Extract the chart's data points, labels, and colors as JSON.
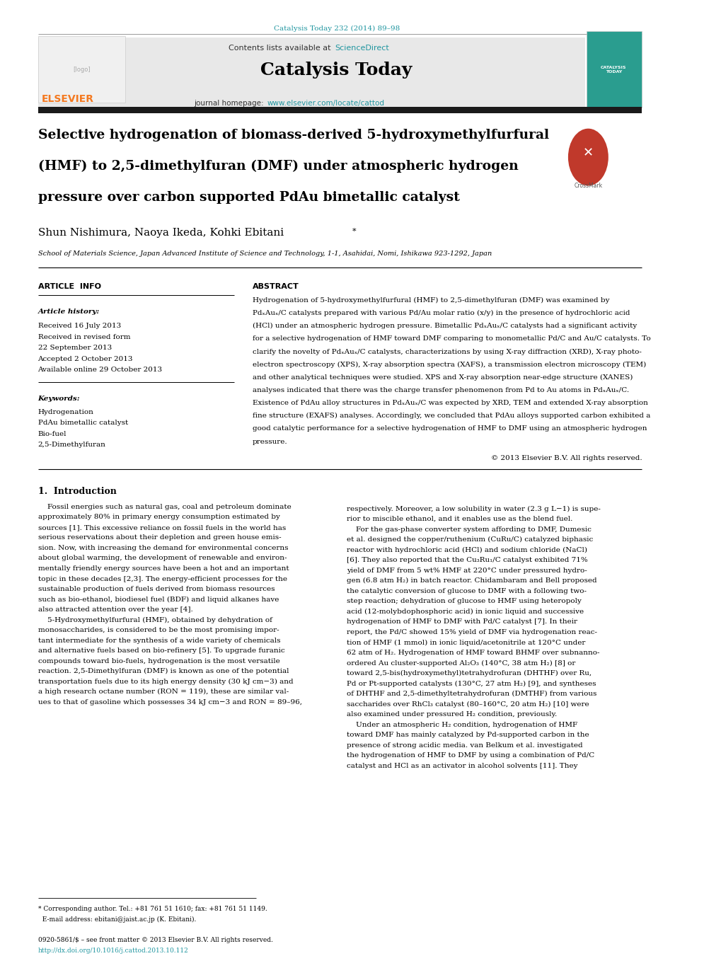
{
  "bg_color": "#ffffff",
  "page_width": 10.2,
  "page_height": 13.51,
  "header_journal_ref": "Catalysis Today 232 (2014) 89–98",
  "header_journal_ref_color": "#2196a0",
  "contents_line": "Contents lists available at",
  "sciencedirect_text": "ScienceDirect",
  "sciencedirect_color": "#2196a0",
  "journal_name": "Catalysis Today",
  "journal_homepage_label": "journal homepage:",
  "journal_url": "www.elsevier.com/locate/cattod",
  "journal_url_color": "#2196a0",
  "dark_bar_color": "#1a1a1a",
  "header_bg_color": "#e8e8e8",
  "article_title_line1": "Selective hydrogenation of biomass-derived 5-hydroxymethylfurfural",
  "article_title_line2": "(HMF) to 2,5-dimethylfuran (DMF) under atmospheric hydrogen",
  "article_title_line3": "pressure over carbon supported PdAu bimetallic catalyst",
  "authors": "Shun Nishimura, Naoya Ikeda, Kohki Ebitani",
  "authors_asterisk": "*",
  "affiliation": "School of Materials Science, Japan Advanced Institute of Science and Technology, 1-1, Asahidai, Nomi, Ishikawa 923-1292, Japan",
  "article_info_header": "ARTICLE  INFO",
  "abstract_header": "ABSTRACT",
  "article_history_label": "Article history:",
  "history_lines": [
    "Received 16 July 2013",
    "Received in revised form",
    "22 September 2013",
    "Accepted 2 October 2013",
    "Available online 29 October 2013"
  ],
  "keywords_label": "Keywords:",
  "keywords_lines": [
    "Hydrogenation",
    "PdAu bimetallic catalyst",
    "Bio-fuel",
    "2,5-Dimethylfuran"
  ],
  "abstract_text_lines": [
    "Hydrogenation of 5-hydroxymethylfurfural (HMF) to 2,5-dimethylfuran (DMF) was examined by",
    "PdₓAuₓ/C catalysts prepared with various Pd/Au molar ratio (x/y) in the presence of hydrochloric acid",
    "(HCl) under an atmospheric hydrogen pressure. Bimetallic PdₓAuₓ/C catalysts had a significant activity",
    "for a selective hydrogenation of HMF toward DMF comparing to monometallic Pd/C and Au/C catalysts. To",
    "clarify the novelty of PdₓAuₓ/C catalysts, characterizations by using X-ray diffraction (XRD), X-ray photo-",
    "electron spectroscopy (XPS), X-ray absorption spectra (XAFS), a transmission electron microscopy (TEM)",
    "and other analytical techniques were studied. XPS and X-ray absorption near-edge structure (XANES)",
    "analyses indicated that there was the charge transfer phenomenon from Pd to Au atoms in PdₓAuₓ/C.",
    "Existence of PdAu alloy structures in PdₓAuₓ/C was expected by XRD, TEM and extended X-ray absorption",
    "fine structure (EXAFS) analyses. Accordingly, we concluded that PdAu alloys supported carbon exhibited a",
    "good catalytic performance for a selective hydrogenation of HMF to DMF using an atmospheric hydrogen",
    "pressure."
  ],
  "copyright_text": "© 2013 Elsevier B.V. All rights reserved.",
  "intro_header": "1.  Introduction",
  "intro_col1_lines": [
    "    Fossil energies such as natural gas, coal and petroleum dominate",
    "approximately 80% in primary energy consumption estimated by",
    "sources [1]. This excessive reliance on fossil fuels in the world has",
    "serious reservations about their depletion and green house emis-",
    "sion. Now, with increasing the demand for environmental concerns",
    "about global warming, the development of renewable and environ-",
    "mentally friendly energy sources have been a hot and an important",
    "topic in these decades [2,3]. The energy-efficient processes for the",
    "sustainable production of fuels derived from biomass resources",
    "such as bio-ethanol, biodiesel fuel (BDF) and liquid alkanes have",
    "also attracted attention over the year [4].",
    "    5-Hydroxymethylfurfural (HMF), obtained by dehydration of",
    "monosaccharides, is considered to be the most promising impor-",
    "tant intermediate for the synthesis of a wide variety of chemicals",
    "and alternative fuels based on bio-refinery [5]. To upgrade furanic",
    "compounds toward bio-fuels, hydrogenation is the most versatile",
    "reaction. 2,5-Dimethylfuran (DMF) is known as one of the potential",
    "transportation fuels due to its high energy density (30 kJ cm−3) and",
    "a high research octane number (RON = 119), these are similar val-",
    "ues to that of gasoline which possesses 34 kJ cm−3 and RON = 89–96,"
  ],
  "intro_col2_lines": [
    "respectively. Moreover, a low solubility in water (2.3 g L−1) is supe-",
    "rior to miscible ethanol, and it enables use as the blend fuel.",
    "    For the gas-phase converter system affording to DMF, Dumesic",
    "et al. designed the copper/ruthenium (CuRu/C) catalyzed biphasic",
    "reactor with hydrochloric acid (HCl) and sodium chloride (NaCl)",
    "[6]. They also reported that the Cu₃Ru₁/C catalyst exhibited 71%",
    "yield of DMF from 5 wt% HMF at 220°C under pressured hydro-",
    "gen (6.8 atm H₂) in batch reactor. Chidambaram and Bell proposed",
    "the catalytic conversion of glucose to DMF with a following two-",
    "step reaction; dehydration of glucose to HMF using heteropoly",
    "acid (12-molybdophosphoric acid) in ionic liquid and successive",
    "hydrogenation of HMF to DMF with Pd/C catalyst [7]. In their",
    "report, the Pd/C showed 15% yield of DMF via hydrogenation reac-",
    "tion of HMF (1 mmol) in ionic liquid/acetonitrile at 120°C under",
    "62 atm of H₂. Hydrogenation of HMF toward BHMF over subnanno-",
    "ordered Au cluster-supported Al₂O₃ (140°C, 38 atm H₂) [8] or",
    "toward 2,5-bis(hydroxymethyl)tetrahydrofuran (DHTHF) over Ru,",
    "Pd or Pt-supported catalysts (130°C, 27 atm H₂) [9], and syntheses",
    "of DHTHF and 2,5-dimethyltetrahydrofuran (DMTHF) from various",
    "saccharides over RhCl₃ catalyst (80–160°C, 20 atm H₂) [10] were",
    "also examined under pressured H₂ condition, previously.",
    "    Under an atmospheric H₂ condition, hydrogenation of HMF",
    "toward DMF has mainly catalyzed by Pd-supported carbon in the",
    "presence of strong acidic media. van Belkum et al. investigated",
    "the hydrogenation of HMF to DMF by using a combination of Pd/C",
    "catalyst and HCl as an activator in alcohol solvents [11]. They"
  ],
  "footnote_lines": [
    "* Corresponding author. Tel.: +81 761 51 1610; fax: +81 761 51 1149.",
    "  E-mail address: ebitani@jaist.ac.jp (K. Ebitani).",
    "",
    "0920-5861/$ – see front matter © 2013 Elsevier B.V. All rights reserved.",
    "http://dx.doi.org/10.1016/j.cattod.2013.10.112"
  ],
  "footnote_url_color": "#2196a0",
  "text_color": "#000000",
  "gray_text_color": "#444444"
}
